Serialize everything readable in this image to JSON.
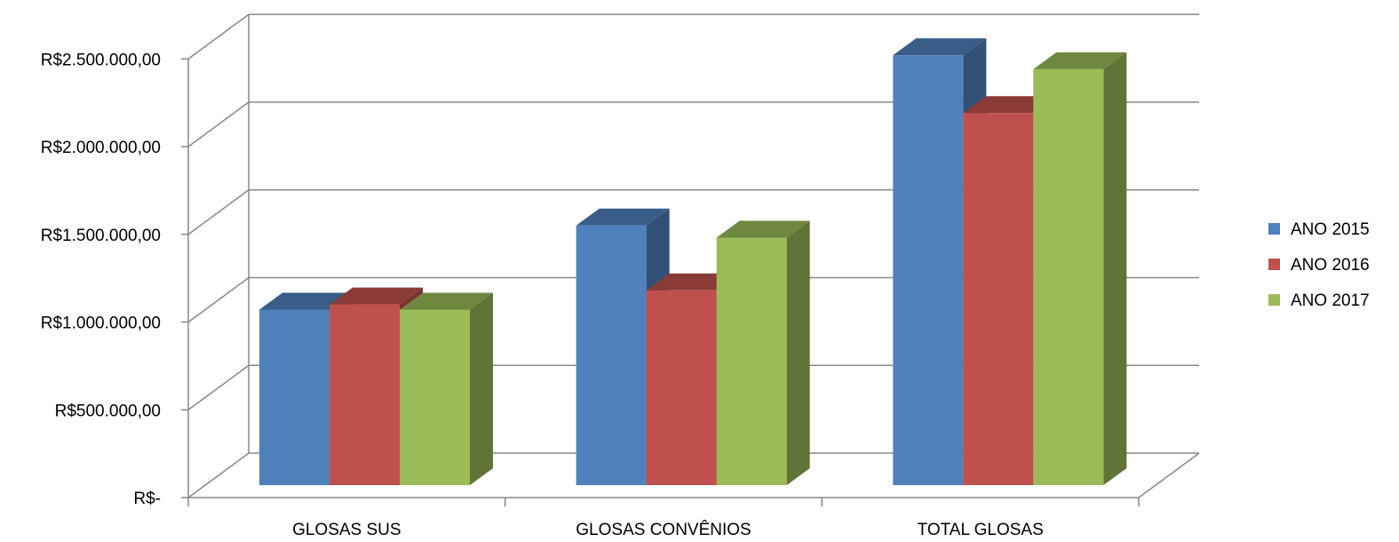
{
  "chart_data": {
    "type": "bar",
    "title": "",
    "xlabel": "",
    "ylabel": "",
    "categories": [
      "GLOSAS SUS",
      "GLOSAS CONVÊNIOS",
      "TOTAL GLOSAS"
    ],
    "series": [
      {
        "name": "ANO 2015",
        "color": "#4F81BD",
        "values": [
          1000000,
          1480000,
          2450000
        ]
      },
      {
        "name": "ANO 2016",
        "color": "#C0504D",
        "values": [
          1030000,
          1110000,
          2120000
        ]
      },
      {
        "name": "ANO 2017",
        "color": "#9BBB59",
        "values": [
          1000000,
          1410000,
          2370000
        ]
      }
    ],
    "y_ticks": [
      "R$-",
      "R$500.000,00",
      "R$1.000.000,00",
      "R$1.500.000,00",
      "R$2.000.000,00",
      "R$2.500.000,00"
    ],
    "ylim": [
      0,
      2500000
    ],
    "grid": true,
    "legend_position": "right",
    "three_d": true
  }
}
